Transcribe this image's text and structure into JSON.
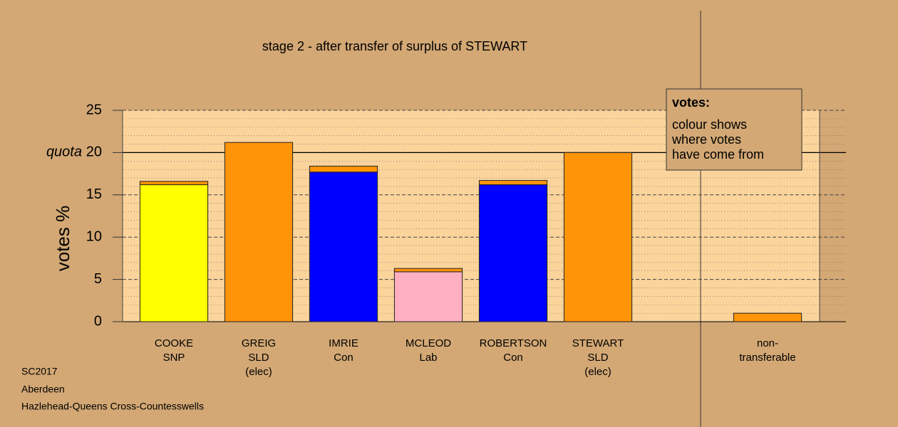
{
  "chart_data": {
    "type": "stacked-bar",
    "title": "stage 2 - after transfer of surplus of STEWART",
    "y_label": "votes %",
    "quota_label": "quota",
    "quota": 20,
    "categories": [
      [
        "COOKE",
        "SNP"
      ],
      [
        "GREIG",
        "SLD",
        "(elec)"
      ],
      [
        "IMRIE",
        "Con"
      ],
      [
        "MCLEOD",
        "Lab"
      ],
      [
        "ROBERTSON",
        "Con"
      ],
      [
        "STEWART",
        "SLD",
        "(elec)"
      ],
      null,
      [
        "non-",
        "transferable"
      ]
    ],
    "series": [
      {
        "colors": [
          "#ffff00",
          "#ff9408",
          "#0000ff",
          "#ffb0c0",
          "#0000ff",
          "#ff9408",
          null,
          null
        ],
        "values": [
          16.2,
          21.2,
          17.7,
          5.9,
          16.2,
          20.0,
          null,
          null
        ]
      },
      {
        "color": "#ff9408",
        "values": [
          0.4,
          null,
          0.7,
          0.4,
          0.5,
          null,
          null,
          1.0
        ]
      }
    ],
    "ylim": [
      0,
      25
    ],
    "yticks": [
      0,
      5,
      10,
      15,
      20,
      25
    ],
    "minor_step": 1,
    "grid": true,
    "legend": {
      "title": "votes:",
      "lines": [
        "colour shows",
        "where votes",
        "have come from"
      ]
    },
    "footnotes": [
      "SC2017",
      "Aberdeen",
      "Hazlehead-Queens Cross-Countesswells"
    ]
  }
}
